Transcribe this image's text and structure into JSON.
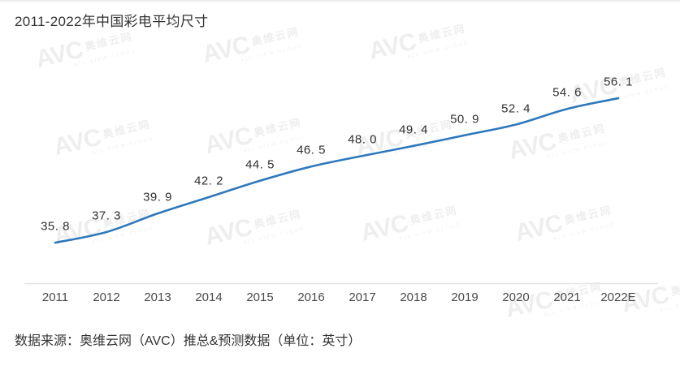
{
  "title": "2011-2022年中国彩电平均尺寸",
  "source_note": "数据来源：奥维云网（AVC）推总&预测数据（单位：英寸）",
  "watermark": {
    "logo": "AVC",
    "cn": "奥维云网",
    "sub": "ALL VIEW CLOUD"
  },
  "colors": {
    "line": "#2e78bc",
    "axis": "#e4e4e4",
    "title_text": "#333333",
    "value_label": "#303030",
    "year_label": "#4a4a4a"
  },
  "chart_data": {
    "type": "line",
    "title": "2011-2022年中国彩电平均尺寸",
    "unit": "英寸",
    "categories": [
      "2011",
      "2012",
      "2013",
      "2014",
      "2015",
      "2016",
      "2017",
      "2018",
      "2019",
      "2020",
      "2021",
      "2022E"
    ],
    "values": [
      35.8,
      37.3,
      39.9,
      42.2,
      44.5,
      46.5,
      48.0,
      49.4,
      50.9,
      52.4,
      54.6,
      56.1
    ],
    "point_labels": [
      "35. 8",
      "37. 3",
      "39. 9",
      "42. 2",
      "44. 5",
      "46. 5",
      "48. 0",
      "49. 4",
      "50. 9",
      "52. 4",
      "54. 6",
      "56. 1"
    ],
    "xlabel": "",
    "ylabel": "",
    "ylim": [
      30,
      58.5
    ],
    "grid": false,
    "legend": "none",
    "markers": false,
    "source": "奥维云网（AVC）推总&预测数据"
  }
}
